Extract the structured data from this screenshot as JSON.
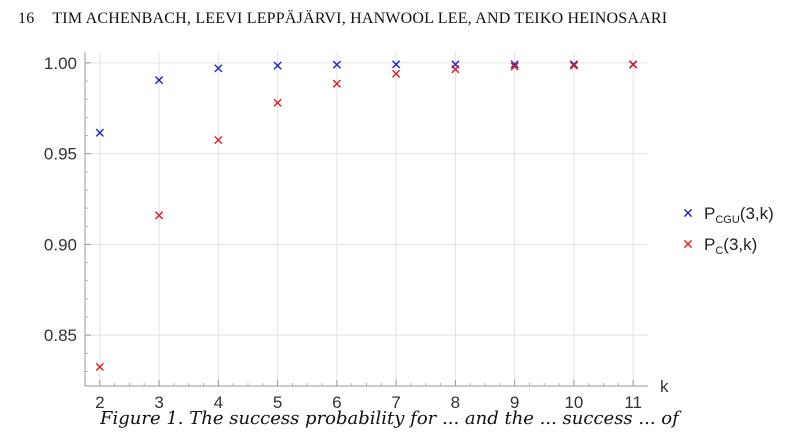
{
  "header": {
    "page_number": "16",
    "authors": "TIM ACHENBACH, LEEVI LEPPÄJÄRVI, HANWOOL LEE, AND TEIKO HEINOSAARI"
  },
  "caption": "Figure 1. The success probability for ... and the ... success ... of",
  "chart_data": {
    "type": "scatter",
    "xlabel": "k",
    "ylabel": "",
    "x": [
      2,
      3,
      4,
      5,
      6,
      7,
      8,
      9,
      10,
      11
    ],
    "xlim": [
      1.75,
      11.25
    ],
    "ylim": [
      0.822,
      1.006
    ],
    "x_ticks": [
      "2",
      "3",
      "4",
      "5",
      "6",
      "7",
      "8",
      "9",
      "10",
      "11"
    ],
    "y_ticks": [
      {
        "value": 1.0,
        "label": "1.00"
      },
      {
        "value": 0.95,
        "label": "0.95"
      },
      {
        "value": 0.9,
        "label": "0.90"
      },
      {
        "value": 0.85,
        "label": "0.85"
      }
    ],
    "grid": true,
    "legend_position": "right",
    "series": [
      {
        "name": "P_CGU(3,k)",
        "label_main": "P",
        "label_sub": "CGU",
        "label_tail": "(3,k)",
        "color": "#1f1fd6",
        "marker": "x",
        "values": [
          0.9615,
          0.9905,
          0.997,
          0.9985,
          0.999,
          0.9992,
          0.9992,
          0.9992,
          0.9992,
          0.9992
        ]
      },
      {
        "name": "P_C(3,k)",
        "label_main": "P",
        "label_sub": "C",
        "label_tail": "(3,k)",
        "color": "#e01b1b",
        "marker": "x",
        "values": [
          0.8325,
          0.916,
          0.9575,
          0.978,
          0.9885,
          0.994,
          0.9965,
          0.998,
          0.9985,
          0.999
        ]
      }
    ]
  }
}
